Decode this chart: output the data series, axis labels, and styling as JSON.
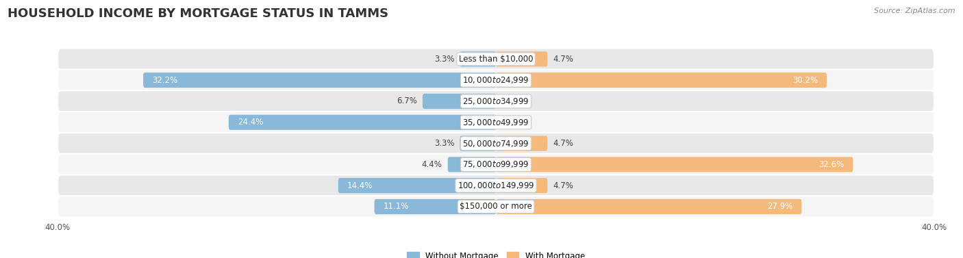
{
  "title": "HOUSEHOLD INCOME BY MORTGAGE STATUS IN TAMMS",
  "source": "Source: ZipAtlas.com",
  "categories": [
    "Less than $10,000",
    "$10,000 to $24,999",
    "$25,000 to $34,999",
    "$35,000 to $49,999",
    "$50,000 to $74,999",
    "$75,000 to $99,999",
    "$100,000 to $149,999",
    "$150,000 or more"
  ],
  "without_mortgage": [
    3.3,
    32.2,
    6.7,
    24.4,
    3.3,
    4.4,
    14.4,
    11.1
  ],
  "with_mortgage": [
    4.7,
    30.2,
    0.0,
    0.0,
    4.7,
    32.6,
    4.7,
    27.9
  ],
  "color_without": "#89b8d8",
  "color_with": "#f5b97c",
  "color_without_light": "#c5dced",
  "color_with_light": "#fadcb8",
  "row_color_odd": "#e8e8e8",
  "row_color_even": "#f5f5f5",
  "axis_limit": 40.0,
  "legend_labels": [
    "Without Mortgage",
    "With Mortgage"
  ],
  "title_fontsize": 13,
  "source_fontsize": 8,
  "label_fontsize": 8.5,
  "cat_label_fontsize": 8.5,
  "bar_label_fontsize": 8.5,
  "figsize": [
    14.06,
    3.77
  ],
  "dpi": 100
}
